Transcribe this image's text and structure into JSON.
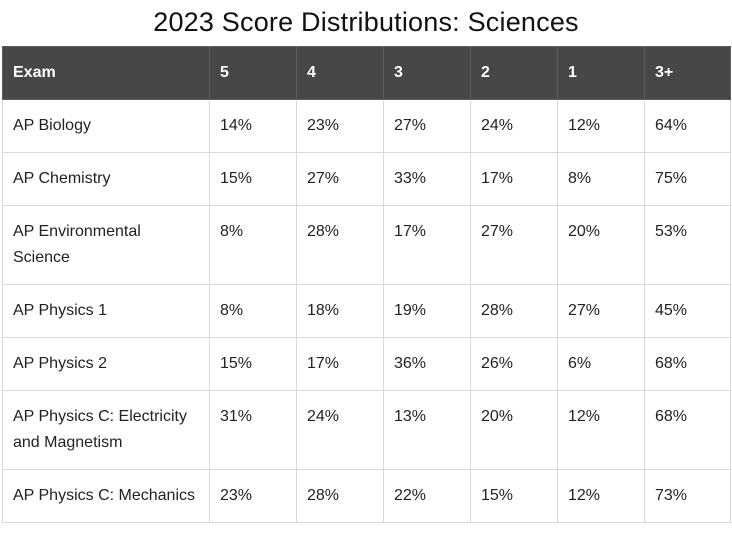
{
  "title": "2023 Score Distributions: Sciences",
  "table": {
    "headers": [
      "Exam",
      "5",
      "4",
      "3",
      "2",
      "1",
      "3+"
    ],
    "rows": [
      {
        "exam": "AP Biology",
        "s5": "14%",
        "s4": "23%",
        "s3": "27%",
        "s2": "24%",
        "s1": "12%",
        "s3plus": "64%"
      },
      {
        "exam": "AP Chemistry",
        "s5": "15%",
        "s4": "27%",
        "s3": "33%",
        "s2": "17%",
        "s1": "8%",
        "s3plus": "75%"
      },
      {
        "exam": "AP Environmental Science",
        "s5": "8%",
        "s4": "28%",
        "s3": "17%",
        "s2": "27%",
        "s1": "20%",
        "s3plus": "53%"
      },
      {
        "exam": "AP Physics 1",
        "s5": "8%",
        "s4": "18%",
        "s3": "19%",
        "s2": "28%",
        "s1": "27%",
        "s3plus": "45%"
      },
      {
        "exam": "AP Physics 2",
        "s5": "15%",
        "s4": "17%",
        "s3": "36%",
        "s2": "26%",
        "s1": "6%",
        "s3plus": "68%"
      },
      {
        "exam": "AP Physics C: Electricity and Magnetism",
        "s5": "31%",
        "s4": "24%",
        "s3": "13%",
        "s2": "20%",
        "s1": "12%",
        "s3plus": "68%"
      },
      {
        "exam": "AP Physics C: Mechanics",
        "s5": "23%",
        "s4": "28%",
        "s3": "22%",
        "s2": "15%",
        "s1": "12%",
        "s3plus": "73%"
      }
    ]
  },
  "colors": {
    "header_bg": "#474747",
    "header_text": "#ffffff",
    "border": "#d9d9d9"
  }
}
